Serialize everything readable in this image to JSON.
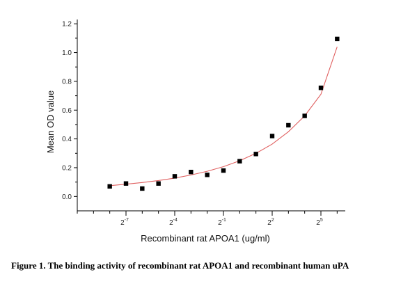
{
  "caption": "Figure 1. The binding activity of recombinant rat APOA1 and recombinant human uPA",
  "chart_data": {
    "type": "scatter",
    "xlabel": "Recombinant rat APOA1  (ug/ml)",
    "ylabel": "Mean OD value",
    "x_scale": "log2",
    "xlim_log2": [
      -10,
      6.5
    ],
    "ylim": [
      -0.1,
      1.23
    ],
    "x_ticks": [
      {
        "label": "2",
        "exp": "-7",
        "log2": -7
      },
      {
        "label": "2",
        "exp": "-4",
        "log2": -4
      },
      {
        "label": "2",
        "exp": "-1",
        "log2": -1
      },
      {
        "label": "2",
        "exp": "2",
        "log2": 2
      },
      {
        "label": "2",
        "exp": "5",
        "log2": 5
      }
    ],
    "y_ticks": [
      0.0,
      0.2,
      0.4,
      0.6,
      0.8,
      1.0,
      1.2
    ],
    "y_tick_labels": [
      "0.0",
      "0.2",
      "0.4",
      "0.6",
      "0.8",
      "1.0",
      "1.2"
    ],
    "grid": false,
    "legend": "none",
    "colors": {
      "points": "#000000",
      "fit": "#e06060",
      "axis": "#000000"
    },
    "series": [
      {
        "marker": "square",
        "x_log2": [
          -8,
          -7,
          -6,
          -5,
          -4,
          -3,
          -2,
          -1,
          0,
          1,
          2,
          3,
          4,
          5,
          6
        ],
        "y": [
          0.07,
          0.09,
          0.055,
          0.09,
          0.14,
          0.17,
          0.15,
          0.18,
          0.245,
          0.295,
          0.42,
          0.495,
          0.56,
          0.755,
          1.095
        ]
      }
    ],
    "fit_curve": {
      "x_log2": [
        -8,
        -7,
        -6,
        -5,
        -4,
        -3,
        -2,
        -1,
        0,
        1,
        2,
        3,
        4,
        5,
        6
      ],
      "y": [
        0.075,
        0.085,
        0.097,
        0.111,
        0.128,
        0.149,
        0.175,
        0.207,
        0.248,
        0.3,
        0.364,
        0.45,
        0.56,
        0.71,
        1.04
      ]
    }
  }
}
